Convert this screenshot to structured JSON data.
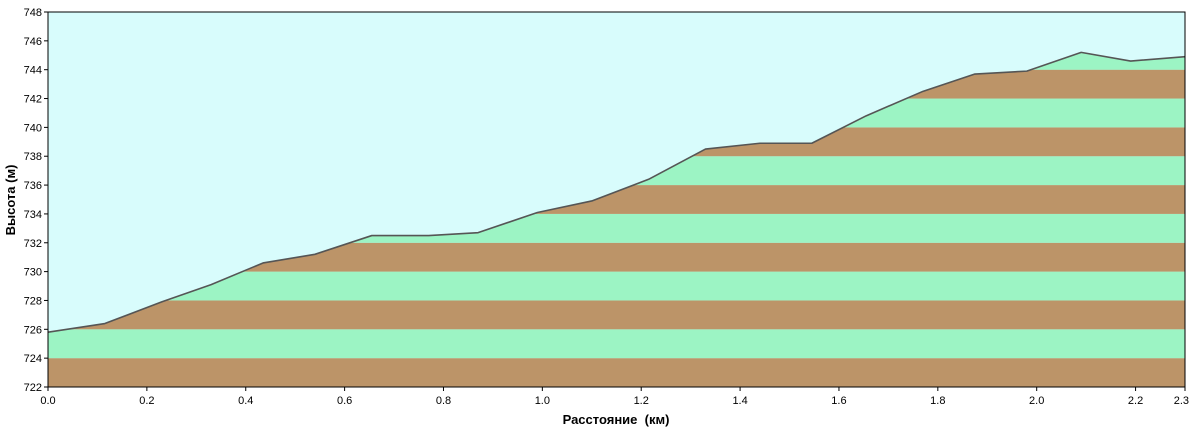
{
  "chart_data": {
    "type": "area",
    "title": "",
    "xlabel": "Расстояние  (км)",
    "ylabel": "Высота (м)",
    "xlim": [
      0,
      2.3
    ],
    "ylim": [
      722,
      748
    ],
    "x_ticks": [
      0.0,
      0.2,
      0.4,
      0.6,
      0.8,
      1.0,
      1.2,
      1.4,
      1.6,
      1.8,
      2.0,
      2.2,
      2.3
    ],
    "x_tick_labels": [
      "0.0",
      "0.2",
      "0.4",
      "0.6",
      "0.8",
      "1.0",
      "1.2",
      "1.4",
      "1.6",
      "1.8",
      "2.0",
      "2.2",
      "2.3"
    ],
    "y_ticks": [
      722,
      724,
      726,
      728,
      730,
      732,
      734,
      736,
      738,
      740,
      742,
      744,
      746,
      748
    ],
    "y_tick_labels": [
      "722",
      "724",
      "726",
      "728",
      "730",
      "732",
      "734",
      "736",
      "738",
      "740",
      "742",
      "744",
      "746",
      "748"
    ],
    "band_step": 2,
    "grid": false,
    "legend": "none",
    "colors": {
      "sky": "#d8fcfc",
      "band_dark": "#bc9468",
      "band_light": "#9cf4c4",
      "profile_line": "#555555",
      "axis": "#000000"
    },
    "series": [
      {
        "x": [
          0.0,
          0.115,
          0.23,
          0.33,
          0.435,
          0.54,
          0.655,
          0.77,
          0.87,
          0.99,
          1.1,
          1.215,
          1.33,
          1.44,
          1.545,
          1.655,
          1.77,
          1.875,
          1.98,
          2.09,
          2.19,
          2.3
        ],
        "y": [
          725.8,
          726.4,
          727.9,
          729.1,
          730.6,
          731.2,
          732.5,
          732.5,
          732.7,
          734.1,
          734.9,
          736.4,
          738.5,
          738.9,
          738.9,
          740.8,
          742.5,
          743.7,
          743.9,
          745.2,
          744.6,
          744.9
        ]
      }
    ]
  }
}
